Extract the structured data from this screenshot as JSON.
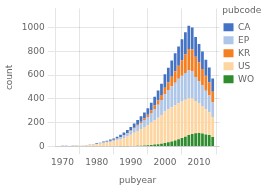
{
  "chart_data": {
    "type": "bar",
    "stacked": true,
    "grid": true,
    "legend": "right",
    "xlabel": "pubyear",
    "ylabel": "count",
    "legend_title": "pubcode",
    "x": [
      1970,
      1971,
      1972,
      1973,
      1974,
      1975,
      1976,
      1977,
      1978,
      1979,
      1980,
      1981,
      1982,
      1983,
      1984,
      1985,
      1986,
      1987,
      1988,
      1989,
      1990,
      1991,
      1992,
      1993,
      1994,
      1995,
      1996,
      1997,
      1998,
      1999,
      2000,
      2001,
      2002,
      2003,
      2004,
      2005,
      2006,
      2007,
      2008,
      2009,
      2010,
      2011,
      2012,
      2013,
      2014
    ],
    "series": [
      {
        "name": "WO",
        "color": "#2e8b2e",
        "values": [
          0,
          0,
          0,
          0,
          0,
          0,
          0,
          0,
          0,
          0,
          0,
          0,
          0,
          0,
          0,
          0,
          0,
          1,
          1,
          2,
          3,
          4,
          5,
          6,
          8,
          10,
          12,
          15,
          18,
          22,
          28,
          35,
          42,
          50,
          60,
          70,
          82,
          95,
          105,
          110,
          112,
          108,
          100,
          95,
          80
        ]
      },
      {
        "name": "US",
        "color": "#fdd5a0",
        "values": [
          3,
          4,
          5,
          6,
          6,
          7,
          8,
          9,
          11,
          14,
          18,
          22,
          28,
          33,
          38,
          44,
          52,
          60,
          70,
          82,
          95,
          110,
          125,
          140,
          155,
          170,
          188,
          205,
          222,
          242,
          265,
          278,
          288,
          295,
          302,
          308,
          310,
          312,
          298,
          272,
          252,
          232,
          212,
          192,
          168
        ]
      },
      {
        "name": "EP",
        "color": "#aec6e8",
        "values": [
          0,
          0,
          0,
          0,
          0,
          0,
          1,
          1,
          1,
          2,
          3,
          4,
          5,
          6,
          8,
          10,
          13,
          16,
          20,
          25,
          30,
          36,
          43,
          50,
          58,
          68,
          80,
          95,
          110,
          126,
          146,
          162,
          176,
          191,
          206,
          216,
          226,
          236,
          226,
          202,
          186,
          171,
          156,
          141,
          121
        ]
      },
      {
        "name": "KR",
        "color": "#f47e20",
        "values": [
          0,
          0,
          0,
          0,
          0,
          0,
          0,
          0,
          0,
          0,
          0,
          0,
          0,
          0,
          1,
          1,
          1,
          2,
          3,
          4,
          5,
          7,
          9,
          12,
          15,
          18,
          22,
          28,
          35,
          42,
          55,
          65,
          80,
          95,
          110,
          130,
          155,
          175,
          185,
          170,
          155,
          140,
          125,
          110,
          90
        ]
      },
      {
        "name": "CA",
        "color": "#4472C4",
        "values": [
          2,
          1,
          1,
          1,
          2,
          1,
          1,
          2,
          2,
          3,
          5,
          5,
          8,
          8,
          10,
          12,
          15,
          18,
          22,
          25,
          30,
          35,
          40,
          45,
          50,
          55,
          65,
          75,
          85,
          95,
          112,
          122,
          136,
          152,
          162,
          176,
          186,
          196,
          186,
          166,
          156,
          146,
          136,
          126,
          111
        ]
      }
    ],
    "xlim": [
      1968,
      2016
    ],
    "xticks": [
      1970,
      1980,
      1990,
      2000,
      2010
    ],
    "ylim": [
      0,
      1160
    ],
    "yticks": [
      0,
      200,
      400,
      600,
      800,
      1000
    ]
  }
}
